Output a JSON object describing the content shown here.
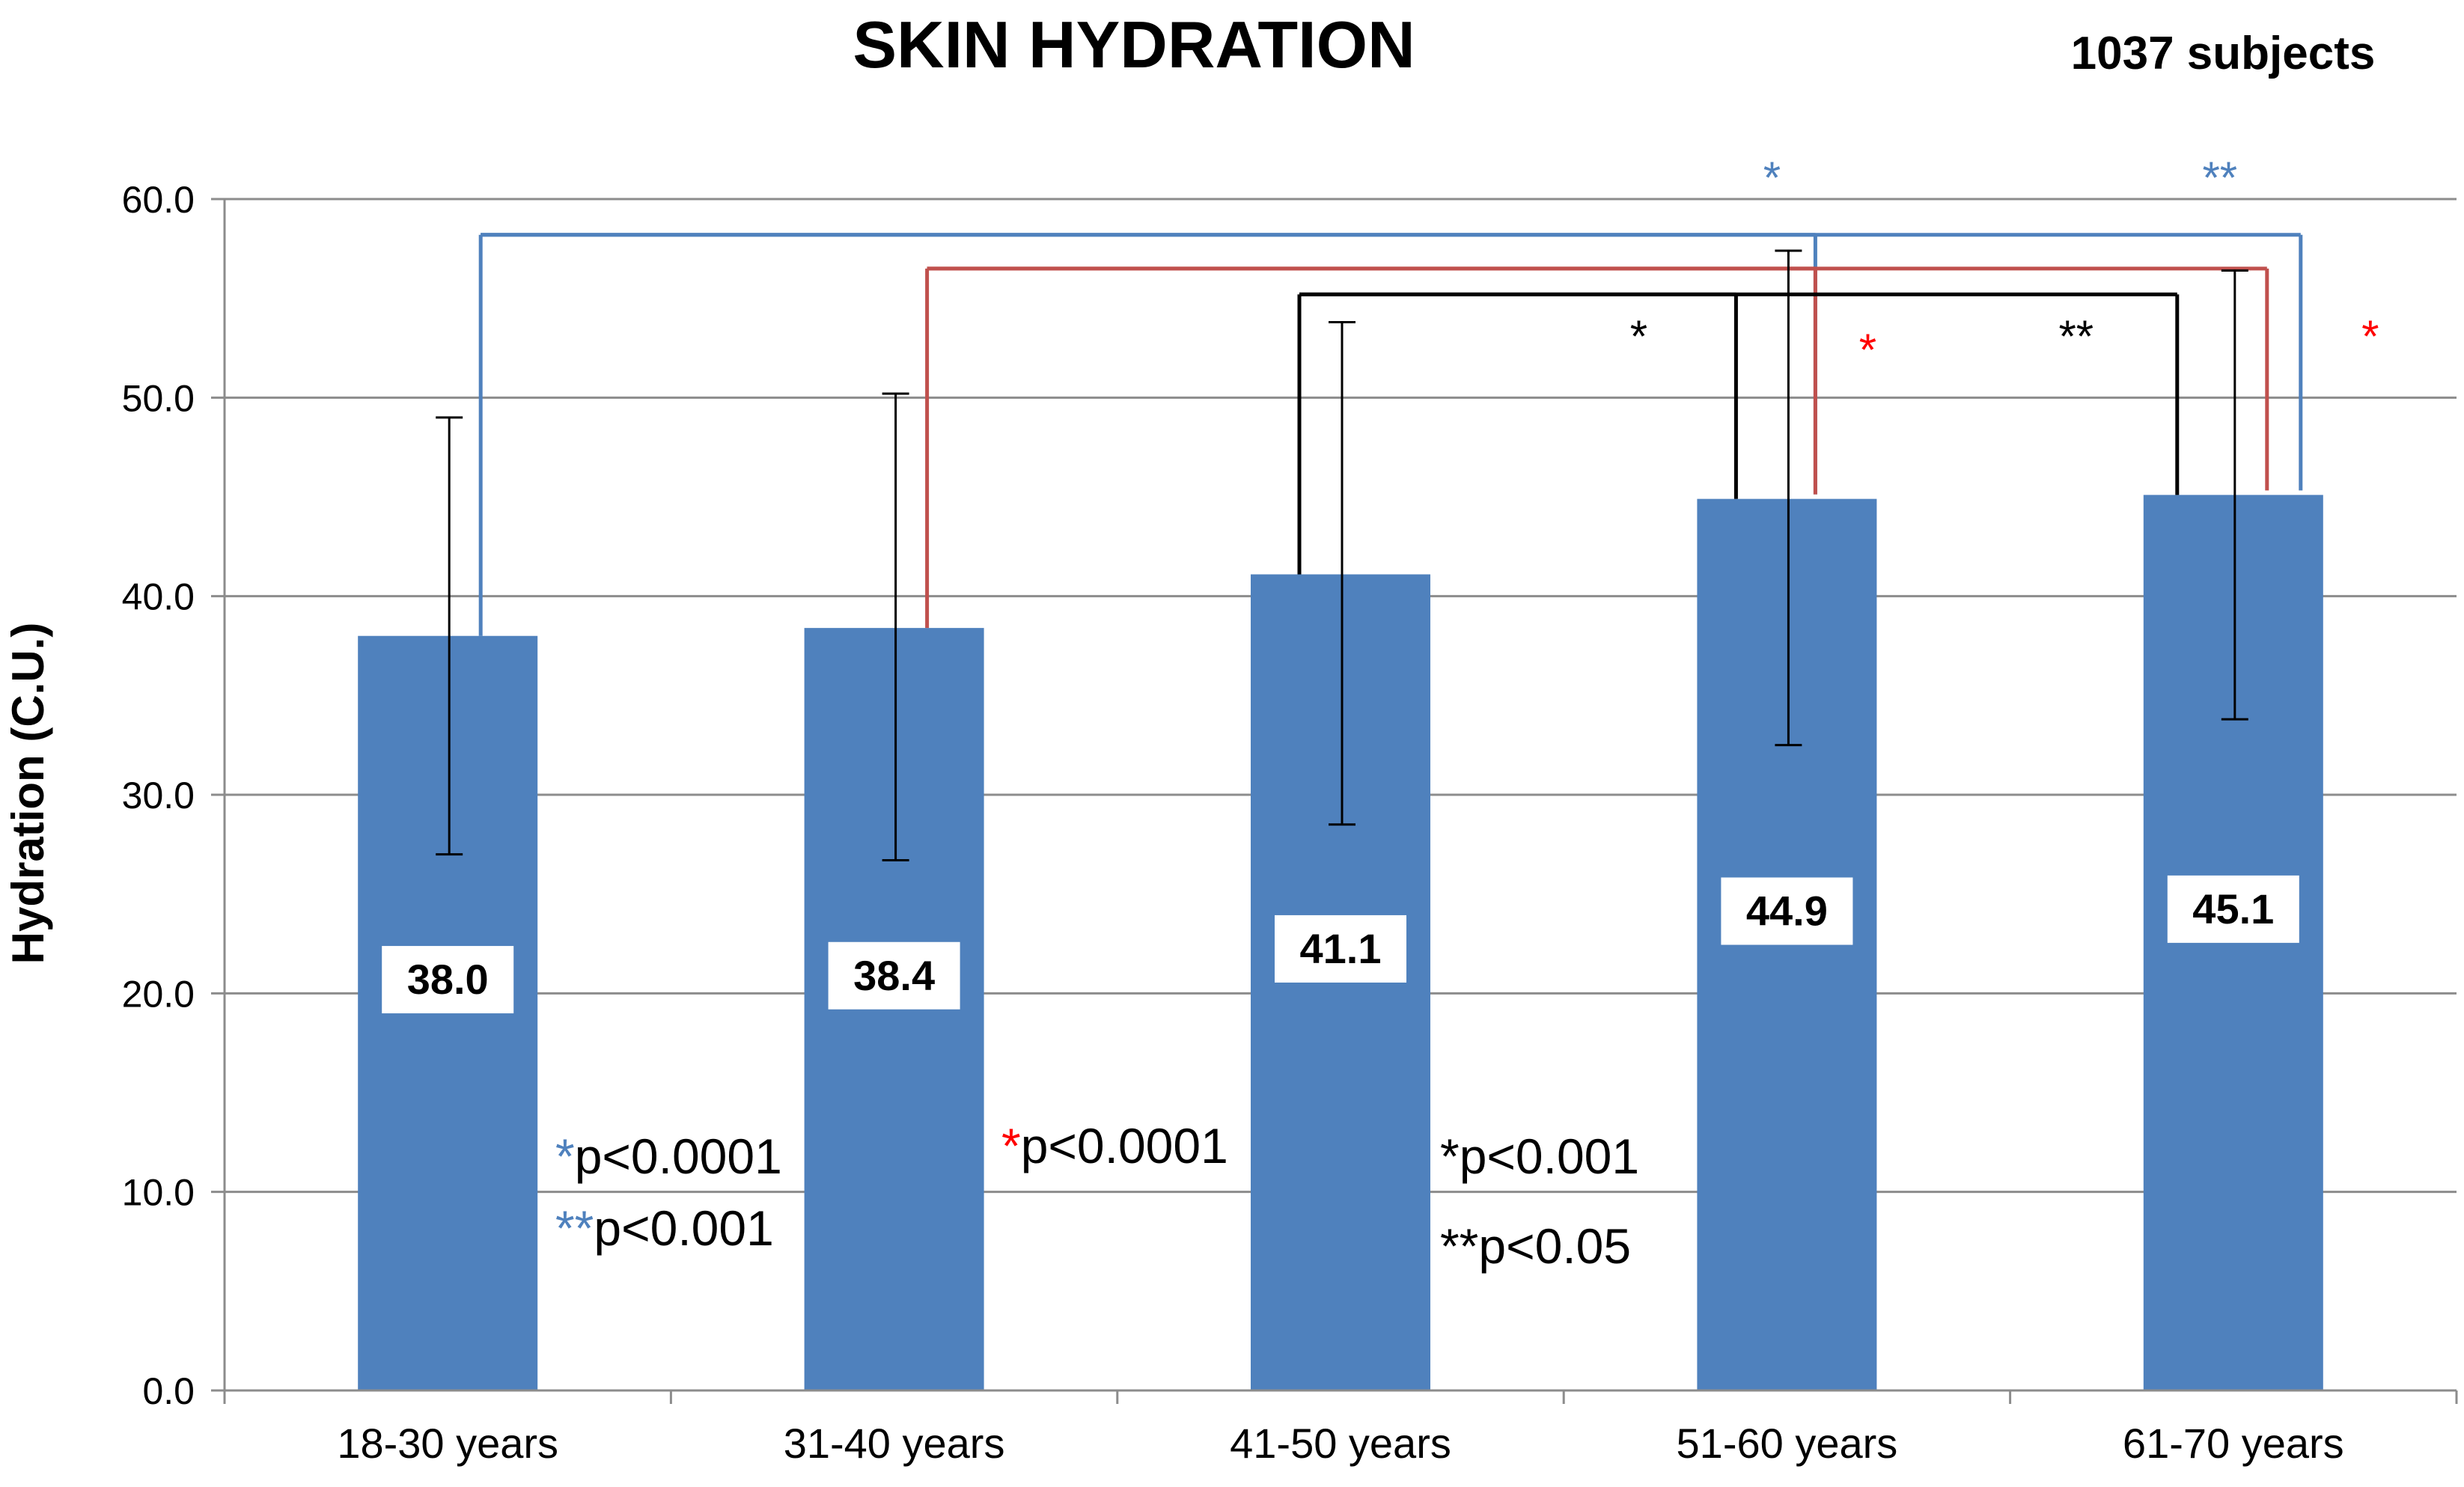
{
  "chart_data": {
    "type": "bar",
    "title": "SKIN HYDRATION",
    "subtitle": "1037 subjects",
    "xlabel": "",
    "ylabel": "Hydration (C.U.)",
    "ylim": [
      0,
      60
    ],
    "yticks": [
      "0.0",
      "10.0",
      "20.0",
      "30.0",
      "40.0",
      "50.0",
      "60.0"
    ],
    "grid": true,
    "categories": [
      "18-30 years",
      "31-40 years",
      "41-50 years",
      "51-60 years",
      "61-70 years"
    ],
    "values": [
      38.0,
      38.4,
      41.1,
      44.9,
      45.1
    ],
    "value_labels": [
      "38.0",
      "38.4",
      "41.1",
      "44.9",
      "45.1"
    ],
    "error_low": [
      27.0,
      26.7,
      28.5,
      32.5,
      33.8
    ],
    "error_high": [
      49.0,
      50.2,
      53.8,
      57.4,
      56.4
    ],
    "bar_color": "#4F81BD",
    "comparisons": [
      {
        "from": 0,
        "to": 3,
        "level": 58.2,
        "color": "#4F81BD",
        "mark": "*"
      },
      {
        "from": 0,
        "to": 4,
        "level": 58.2,
        "color": "#4F81BD",
        "mark": "**"
      },
      {
        "from": 1,
        "to": 3,
        "level": 56.5,
        "color": "#C0504D",
        "mark": "*"
      },
      {
        "from": 1,
        "to": 4,
        "level": 56.5,
        "color": "#C0504D",
        "mark": "*"
      },
      {
        "from": 2,
        "to": 3,
        "level": 55.2,
        "color": "#000000",
        "mark": "*"
      },
      {
        "from": 2,
        "to": 4,
        "level": 55.2,
        "color": "#000000",
        "mark": "**"
      }
    ],
    "significance_legend": [
      {
        "mark": "*",
        "text": "p<0.0001",
        "color": "#4F81BD"
      },
      {
        "mark": "**",
        "text": "p<0.001",
        "color": "#4F81BD"
      },
      {
        "mark": "*",
        "text": "p<0.0001",
        "color": "#FF0000"
      },
      {
        "mark": "*",
        "text": "p<0.001",
        "color": "#000000"
      },
      {
        "mark": "**",
        "text": "p<0.05",
        "color": "#000000"
      }
    ]
  }
}
